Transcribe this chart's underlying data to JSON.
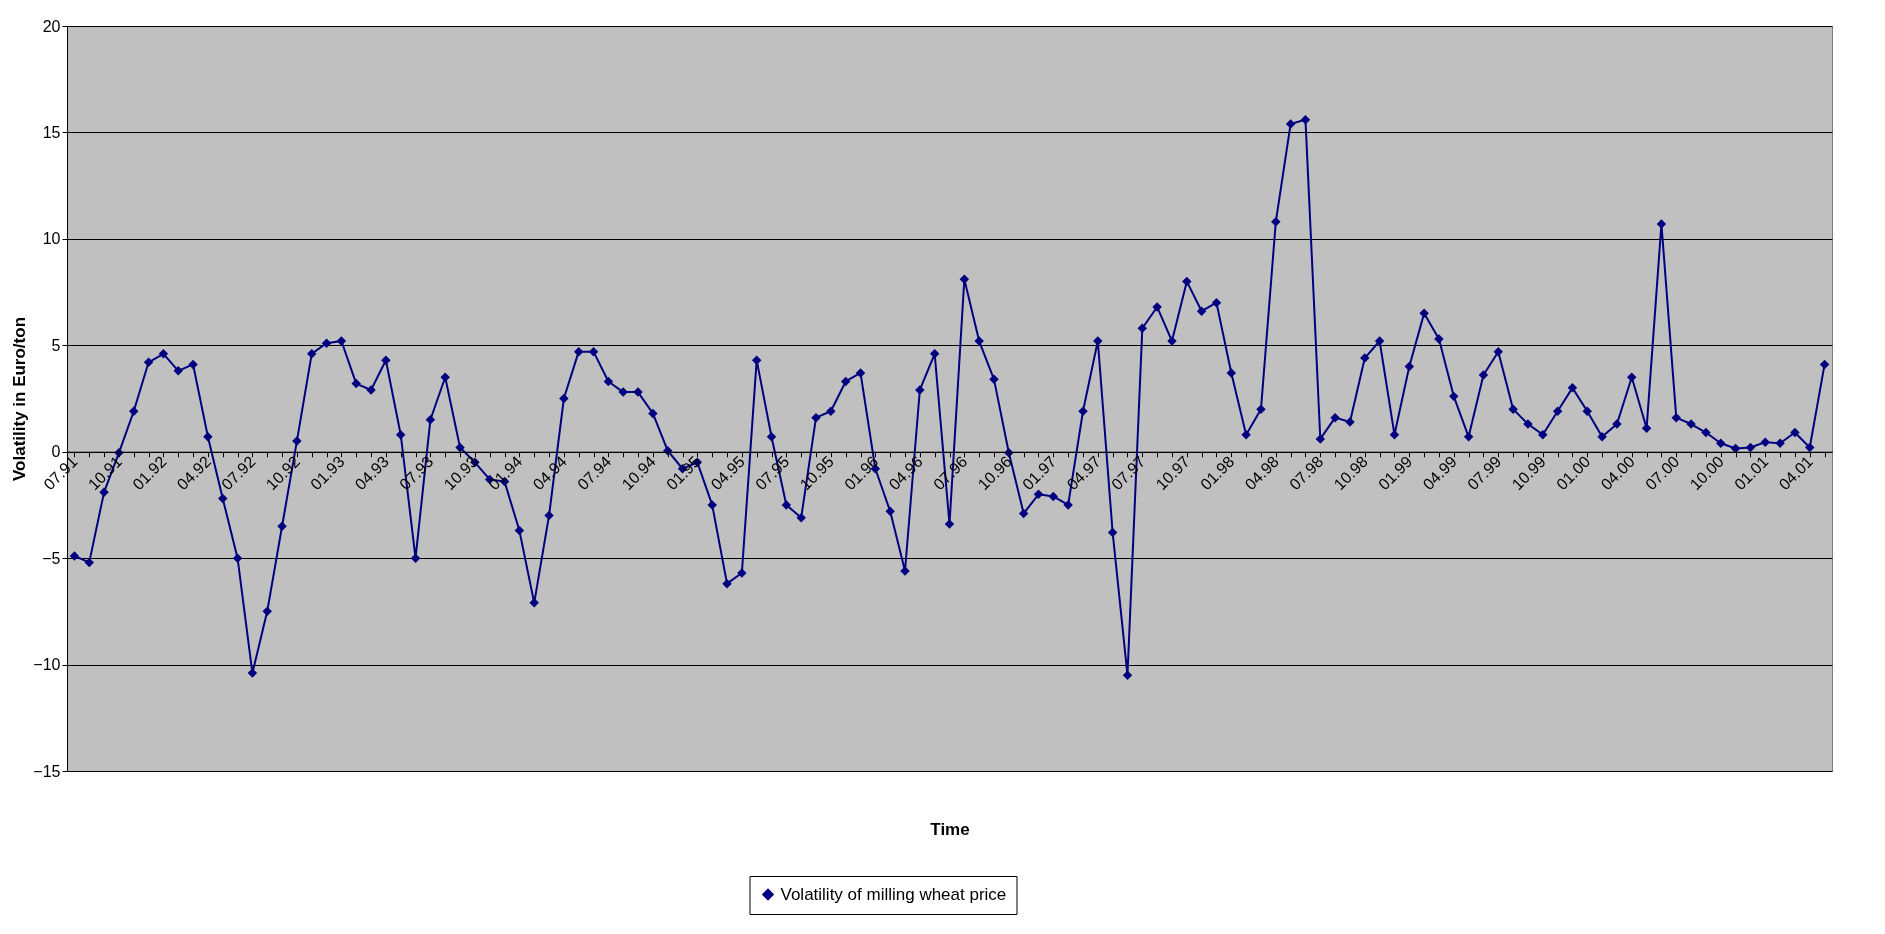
{
  "chart_data": {
    "type": "line",
    "xlabel": "Time",
    "ylabel": "Volatility in Euro/ton",
    "categories": [
      "07.91",
      null,
      null,
      "10.91",
      null,
      null,
      "01.92",
      null,
      null,
      "04.92",
      null,
      null,
      "07.92",
      null,
      null,
      "10.92",
      null,
      null,
      "01.93",
      null,
      null,
      "04.93",
      null,
      null,
      "07.93",
      null,
      null,
      "10.93",
      null,
      null,
      "01.94",
      null,
      null,
      "04.94",
      null,
      null,
      "07.94",
      null,
      null,
      "10.94",
      null,
      null,
      "01.95",
      null,
      null,
      "04.95",
      null,
      null,
      "07.95",
      null,
      null,
      "10.95",
      null,
      null,
      "01.96",
      null,
      null,
      "04.96",
      null,
      null,
      "07.96",
      null,
      null,
      "10.96",
      null,
      null,
      "01.97",
      null,
      null,
      "04.97",
      null,
      null,
      "07.97",
      null,
      null,
      "10.97",
      null,
      null,
      "01.98",
      null,
      null,
      "04.98",
      null,
      null,
      "07.98",
      null,
      null,
      "10.98",
      null,
      null,
      "01.99",
      null,
      null,
      "04.99",
      null,
      null,
      "07.99",
      null,
      null,
      "10.99",
      null,
      null,
      "01.00",
      null,
      null,
      "04.00",
      null,
      null,
      "07.00",
      null,
      null,
      "10.00",
      null,
      null,
      "01.01",
      null,
      null,
      "04.01",
      null
    ],
    "series": [
      {
        "name": "Volatility of milling wheat price",
        "color": "#000080",
        "values": [
          -4.9,
          -5.2,
          -1.9,
          -0.05,
          1.9,
          4.2,
          4.6,
          3.8,
          4.1,
          0.7,
          -2.2,
          -5.0,
          -10.4,
          -7.5,
          -3.5,
          0.5,
          4.6,
          5.1,
          5.2,
          3.2,
          2.9,
          4.3,
          0.8,
          -5.0,
          1.5,
          3.5,
          0.2,
          -0.5,
          -1.3,
          -1.4,
          -3.7,
          -7.1,
          -3.0,
          2.5,
          4.7,
          4.7,
          3.3,
          2.8,
          2.8,
          1.8,
          0.05,
          -0.8,
          -0.5,
          -2.5,
          -6.2,
          -5.7,
          4.3,
          0.7,
          -2.5,
          -3.1,
          1.6,
          1.9,
          3.3,
          3.7,
          -0.8,
          -2.8,
          -5.6,
          2.9,
          4.6,
          -3.4,
          8.1,
          5.2,
          3.4,
          -0.05,
          -2.9,
          -2.0,
          -2.1,
          -2.5,
          1.9,
          5.2,
          -3.8,
          -10.5,
          5.8,
          6.8,
          5.2,
          8.0,
          6.6,
          7.0,
          3.7,
          0.8,
          2.0,
          10.8,
          15.4,
          15.6,
          0.6,
          1.6,
          1.4,
          4.4,
          5.2,
          0.8,
          4.0,
          6.5,
          5.3,
          2.6,
          0.7,
          3.6,
          4.7,
          2.0,
          1.3,
          0.8,
          1.9,
          3.0,
          1.9,
          0.7,
          1.3,
          3.5,
          1.1,
          10.7,
          1.6,
          1.3,
          0.9,
          0.4,
          0.15,
          0.2,
          0.45,
          0.4,
          0.9,
          0.2,
          4.1
        ]
      }
    ],
    "ylim": [
      -15,
      20
    ],
    "yticks": [
      -15,
      -10,
      -5,
      0,
      5,
      10,
      15,
      20
    ],
    "grid": "y",
    "legend": "bottom",
    "marker": "diamond",
    "line_style": "solid"
  }
}
